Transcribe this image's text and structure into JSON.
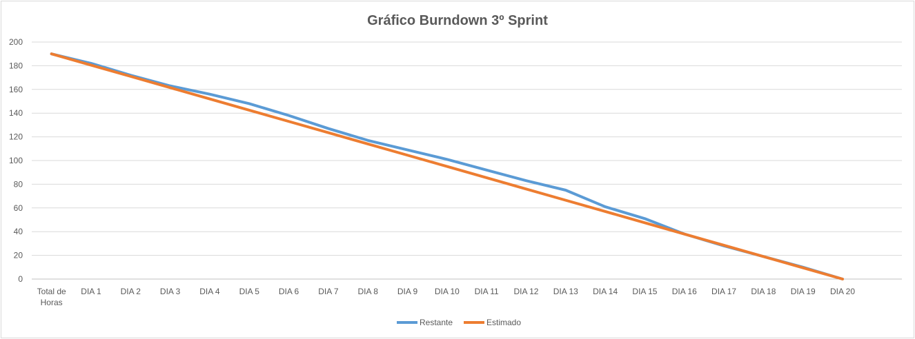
{
  "chart_data": {
    "type": "line",
    "title": "Gráfico Burndown 3º Sprint",
    "xlabel": "",
    "ylabel": "",
    "categories": [
      "Total de Horas",
      "DIA 1",
      "DIA 2",
      "DIA 3",
      "DIA 4",
      "DIA 5",
      "DIA 6",
      "DIA 7",
      "DIA 8",
      "DIA 9",
      "DIA 10",
      "DIA 11",
      "DIA 12",
      "DIA 13",
      "DIA 14",
      "DIA 15",
      "DIA 16",
      "DIA 17",
      "DIA 18",
      "DIA 19",
      "DIA 20"
    ],
    "ylim": [
      0,
      200
    ],
    "yticks": [
      0,
      20,
      40,
      60,
      80,
      100,
      120,
      140,
      160,
      180,
      200
    ],
    "grid": true,
    "legend": "bottom",
    "series": [
      {
        "name": "Restante",
        "color": "#5b9bd5",
        "values": [
          190,
          182,
          172,
          163,
          156,
          148,
          138,
          127,
          117,
          109,
          101,
          92,
          83,
          75,
          61,
          51,
          38,
          28,
          19,
          10,
          0
        ]
      },
      {
        "name": "Estimado",
        "color": "#ed7d31",
        "values": [
          190,
          180.5,
          171,
          161.5,
          152,
          142.5,
          133,
          123.5,
          114,
          104.5,
          95,
          85.5,
          76,
          66.5,
          57,
          47.5,
          38,
          28.5,
          19,
          9.5,
          0
        ]
      }
    ]
  }
}
